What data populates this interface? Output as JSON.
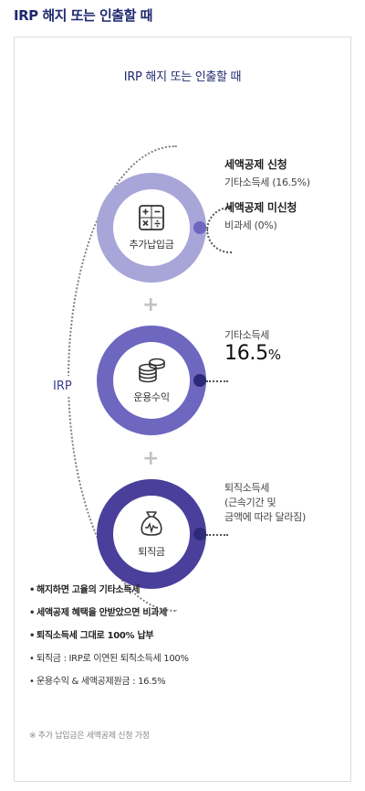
{
  "page": {
    "title": "IRP 해지 또는 인출할 때"
  },
  "diagram": {
    "title": "IRP 해지 또는 인출할 때",
    "group_label": "IRP",
    "plus_symbol": "+",
    "colors": {
      "ring1": "#a8a5d8",
      "ring2": "#6d67c0",
      "ring3": "#4a3f9a",
      "dark": "#2d2a7a"
    },
    "items": [
      {
        "label": "추가납입금",
        "icon": "calculator-icon",
        "upper_title": "세액공제 신청",
        "upper_detail": "기타소득세 (16.5%)",
        "lower_title": "세액공제 미신청",
        "lower_detail": "비과세 (0%)"
      },
      {
        "label": "운용수익",
        "icon": "coins-icon",
        "detail": "기타소득세",
        "rate_value": "16.5",
        "rate_unit": "%"
      },
      {
        "label": "퇴직금",
        "icon": "money-bag-icon",
        "detail_line1": "퇴직소득세",
        "detail_line2": "(근속기간 및",
        "detail_line3": "금액에 따라 달라짐)"
      }
    ]
  },
  "notes": [
    "해지하면 고율의 기타소득세",
    "세액공제 혜택을 안받았으면 비과세",
    "퇴직소득세 그대로 100% 납부",
    "퇴직금 : IRP로 이연된 퇴직소득세 100%",
    "운용수익 & 세액공제원금 : 16.5%"
  ],
  "footnote": "※ 추가 납입금은 세액공제 신청 가정"
}
